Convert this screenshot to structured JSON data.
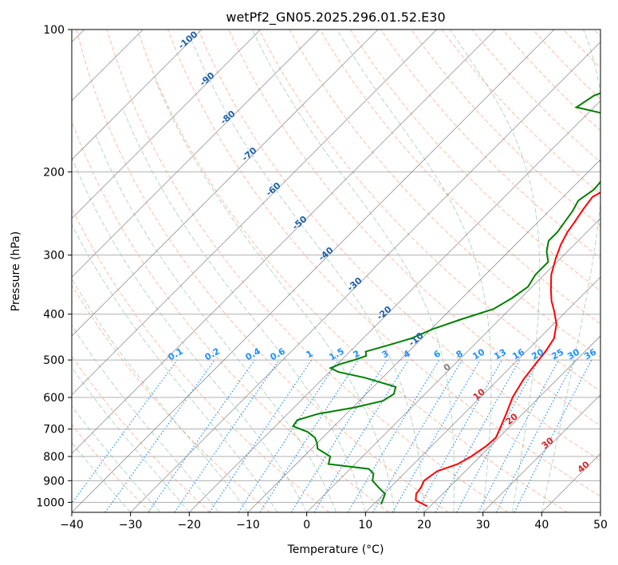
{
  "chart_data": {
    "type": "line",
    "title": "wetPf2_GN05.2025.296.01.52.E30",
    "xlabel": "Temperature (°C)",
    "ylabel": "Pressure (hPa)",
    "xlim": [
      -40,
      50
    ],
    "ylim": [
      1050,
      100
    ],
    "y_scale": "log",
    "x_ticks": [
      "−40",
      "−30",
      "−20",
      "−10",
      "0",
      "10",
      "20",
      "30",
      "40",
      "50"
    ],
    "y_ticks": [
      "100",
      "200",
      "300",
      "400",
      "500",
      "600",
      "700",
      "800",
      "900",
      "1000"
    ],
    "grid": true,
    "series": [
      {
        "role": "temperature",
        "color": "#ff0000",
        "points": [
          [
            19.5,
            1020
          ],
          [
            16.5,
            990
          ],
          [
            15.5,
            960
          ],
          [
            15.2,
            930
          ],
          [
            14.6,
            900
          ],
          [
            15.2,
            860
          ],
          [
            17.5,
            830
          ],
          [
            18.5,
            800
          ],
          [
            19.3,
            760
          ],
          [
            19.5,
            730
          ],
          [
            18.7,
            700
          ],
          [
            17.2,
            650
          ],
          [
            15.5,
            600
          ],
          [
            14.3,
            550
          ],
          [
            13.7,
            510
          ],
          [
            13.3,
            480
          ],
          [
            12.5,
            450
          ],
          [
            10.5,
            420
          ],
          [
            8.0,
            395
          ],
          [
            5.7,
            375
          ],
          [
            3.7,
            355
          ],
          [
            1.2,
            330
          ],
          [
            -0.8,
            305
          ],
          [
            -2.3,
            285
          ],
          [
            -3.3,
            268
          ],
          [
            -3.8,
            255
          ],
          [
            -4.5,
            240
          ],
          [
            -5.0,
            226
          ],
          [
            -3.5,
            214
          ],
          [
            -2.4,
            205
          ],
          [
            -1.5,
            196
          ],
          [
            0.2,
            182
          ],
          [
            2.3,
            167
          ],
          [
            4.3,
            155
          ],
          [
            6.5,
            145
          ],
          [
            9.0,
            137
          ],
          [
            11.3,
            130
          ],
          [
            13.2,
            124
          ],
          [
            14.3,
            118
          ],
          [
            14.6,
            112
          ],
          [
            14.1,
            106
          ],
          [
            12.6,
            100
          ]
        ]
      },
      {
        "role": "dewpoint",
        "color": "#008000",
        "points": [
          [
            11.3,
            1010
          ],
          [
            10.2,
            960
          ],
          [
            8.0,
            930
          ],
          [
            5.8,
            900
          ],
          [
            4.8,
            870
          ],
          [
            3.2,
            850
          ],
          [
            -4.5,
            830
          ],
          [
            -5.5,
            800
          ],
          [
            -9.0,
            770
          ],
          [
            -10.0,
            750
          ],
          [
            -11.3,
            730
          ],
          [
            -13.5,
            710
          ],
          [
            -17.0,
            690
          ],
          [
            -17.3,
            670
          ],
          [
            -14.8,
            650
          ],
          [
            -9.7,
            630
          ],
          [
            -6.0,
            610
          ],
          [
            -5.3,
            590
          ],
          [
            -6.2,
            570
          ],
          [
            -13.0,
            545
          ],
          [
            -18.5,
            530
          ],
          [
            -20.5,
            520
          ],
          [
            -19.5,
            510
          ],
          [
            -17.8,
            500
          ],
          [
            -16.5,
            490
          ],
          [
            -17.3,
            480
          ],
          [
            -14.5,
            465
          ],
          [
            -11.8,
            450
          ],
          [
            -9.7,
            430
          ],
          [
            -6.5,
            410
          ],
          [
            -2.8,
            390
          ],
          [
            -1.5,
            370
          ],
          [
            -0.7,
            350
          ],
          [
            -1.5,
            330
          ],
          [
            -1.5,
            310
          ],
          [
            -3.5,
            295
          ],
          [
            -5.0,
            280
          ],
          [
            -5.0,
            268
          ],
          [
            -5.5,
            255
          ],
          [
            -6.0,
            242
          ],
          [
            -6.8,
            230
          ],
          [
            -6.0,
            218
          ],
          [
            -6.3,
            207
          ],
          [
            -5.5,
            196
          ],
          [
            -4.5,
            187
          ],
          [
            -3.8,
            178
          ],
          [
            -4.0,
            170
          ],
          [
            -5.5,
            163
          ],
          [
            -10.0,
            157
          ],
          [
            -18.0,
            150
          ],
          [
            -23.0,
            146
          ],
          [
            -22.0,
            138
          ],
          [
            -19.0,
            131
          ],
          [
            -16.5,
            124
          ],
          [
            -14.3,
            118
          ],
          [
            -11.5,
            112
          ],
          [
            -3.0,
            110
          ],
          [
            5.0,
            108
          ],
          [
            12.0,
            104
          ],
          [
            16.0,
            102
          ],
          [
            18.0,
            100
          ]
        ]
      }
    ],
    "isotherm_labels": [
      "-100",
      "-90",
      "-80",
      "-70",
      "-60",
      "-50",
      "-40",
      "-30",
      "-20",
      "-10",
      "0",
      "10",
      "20",
      "30",
      "40"
    ],
    "mixing_ratio_labels": [
      "0.1",
      "0.2",
      "0.4",
      "0.6",
      "1",
      "1.5",
      "2",
      "3",
      "4",
      "6",
      "8",
      "10",
      "13",
      "16",
      "20",
      "25",
      "30",
      "36"
    ],
    "colors": {
      "temperature": "#ff0000",
      "dewpoint": "#008000",
      "dry_adiabat": "#ffa07a",
      "moist_adiabat": "#2e8b57",
      "mixing_ratio": "#1e90ff",
      "isotherm": "#808080",
      "grid": "#b0b0b0"
    }
  }
}
